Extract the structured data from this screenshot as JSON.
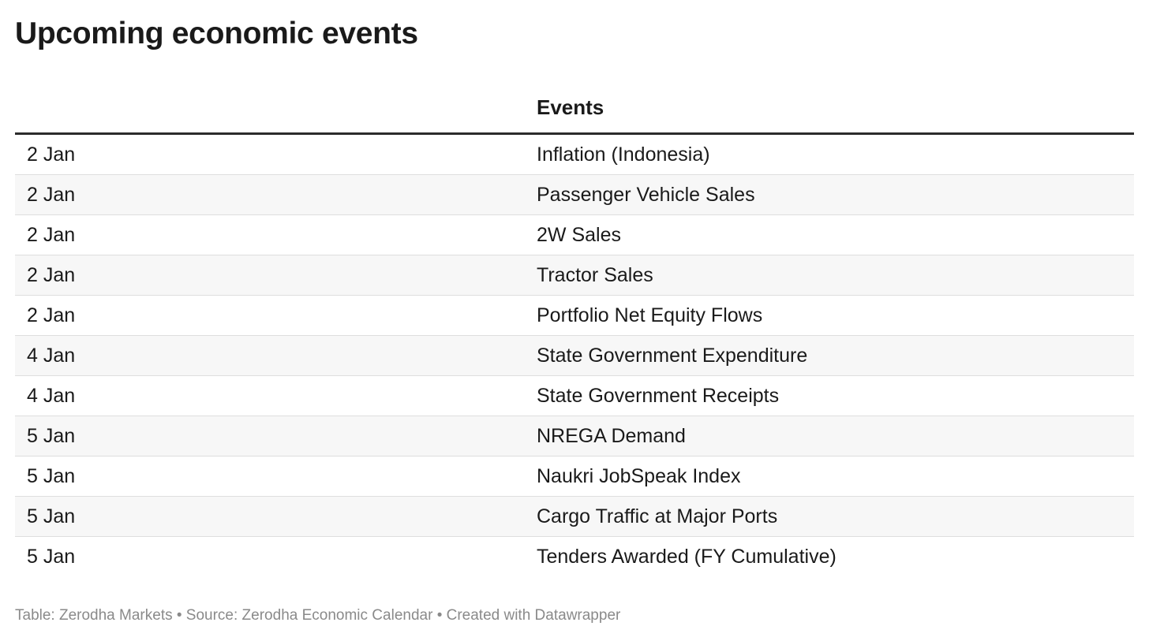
{
  "title": "Upcoming economic events",
  "table": {
    "headers": [
      "",
      "Events"
    ],
    "rows": [
      {
        "date": "2 Jan",
        "event": "Inflation (Indonesia)"
      },
      {
        "date": "2 Jan",
        "event": "Passenger Vehicle Sales"
      },
      {
        "date": "2 Jan",
        "event": "2W Sales"
      },
      {
        "date": "2 Jan",
        "event": "Tractor Sales"
      },
      {
        "date": "2 Jan",
        "event": "Portfolio Net Equity Flows"
      },
      {
        "date": "4 Jan",
        "event": "State Government Expenditure"
      },
      {
        "date": "4 Jan",
        "event": "State Government Receipts"
      },
      {
        "date": "5 Jan",
        "event": "NREGA Demand"
      },
      {
        "date": "5 Jan",
        "event": "Naukri JobSpeak Index"
      },
      {
        "date": "5 Jan",
        "event": "Cargo Traffic at Major Ports"
      },
      {
        "date": "5 Jan",
        "event": "Tenders Awarded (FY Cumulative)"
      }
    ]
  },
  "footer": "Table: Zerodha Markets • Source: Zerodha Economic Calendar • Created with Datawrapper",
  "colors": {
    "text": "#1a1a1a",
    "stripe": "#f7f7f7",
    "footer": "#8a8a8a",
    "rule": "#2b2b2b"
  }
}
